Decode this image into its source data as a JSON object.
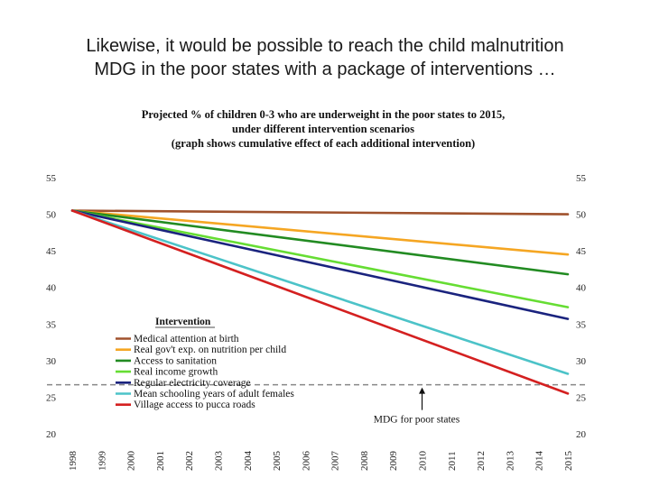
{
  "slide": {
    "title_line1": "Likewise, it would be possible to reach the child malnutrition",
    "title_line2": "MDG in the poor states with a package of interventions …"
  },
  "chart_data": {
    "type": "line",
    "title_lines": [
      "Projected % of children 0-3 who are underweight in the poor states to 2015,",
      "under different intervention scenarios",
      "(graph shows cumulative effect of each additional intervention)"
    ],
    "x": [
      "1998",
      "1999",
      "2000",
      "2001",
      "2002",
      "2003",
      "2004",
      "2005",
      "2006",
      "2007",
      "2008",
      "2009",
      "2010",
      "2011",
      "2012",
      "2013",
      "2014",
      "2015"
    ],
    "y_ticks": [
      20,
      25,
      30,
      35,
      40,
      45,
      50,
      55
    ],
    "ylim": [
      20,
      55
    ],
    "legend_title": "Intervention",
    "legend_position": "bottom-left",
    "series": [
      {
        "name": "Medical attention at birth",
        "color": "#a0522d",
        "start": 50.5,
        "end": 50.0
      },
      {
        "name": "Real gov't exp. on nutrition per child",
        "color": "#f5a623",
        "start": 50.5,
        "end": 44.5
      },
      {
        "name": "Access to sanitation",
        "color": "#228b22",
        "start": 50.5,
        "end": 41.8
      },
      {
        "name": "Real income growth",
        "color": "#66dd33",
        "start": 50.5,
        "end": 37.3
      },
      {
        "name": "Regular electricity coverage",
        "color": "#1a237e",
        "start": 50.5,
        "end": 35.7
      },
      {
        "name": "Mean schooling years of adult females",
        "color": "#4cc3c8",
        "start": 50.5,
        "end": 28.2
      },
      {
        "name": "Village access to pucca roads",
        "color": "#d42020",
        "start": 50.5,
        "end": 25.5
      }
    ],
    "mdg_target": {
      "value": 26.7,
      "color": "#888888",
      "label": "MDG for poor states",
      "arrow_year": "2010"
    }
  }
}
